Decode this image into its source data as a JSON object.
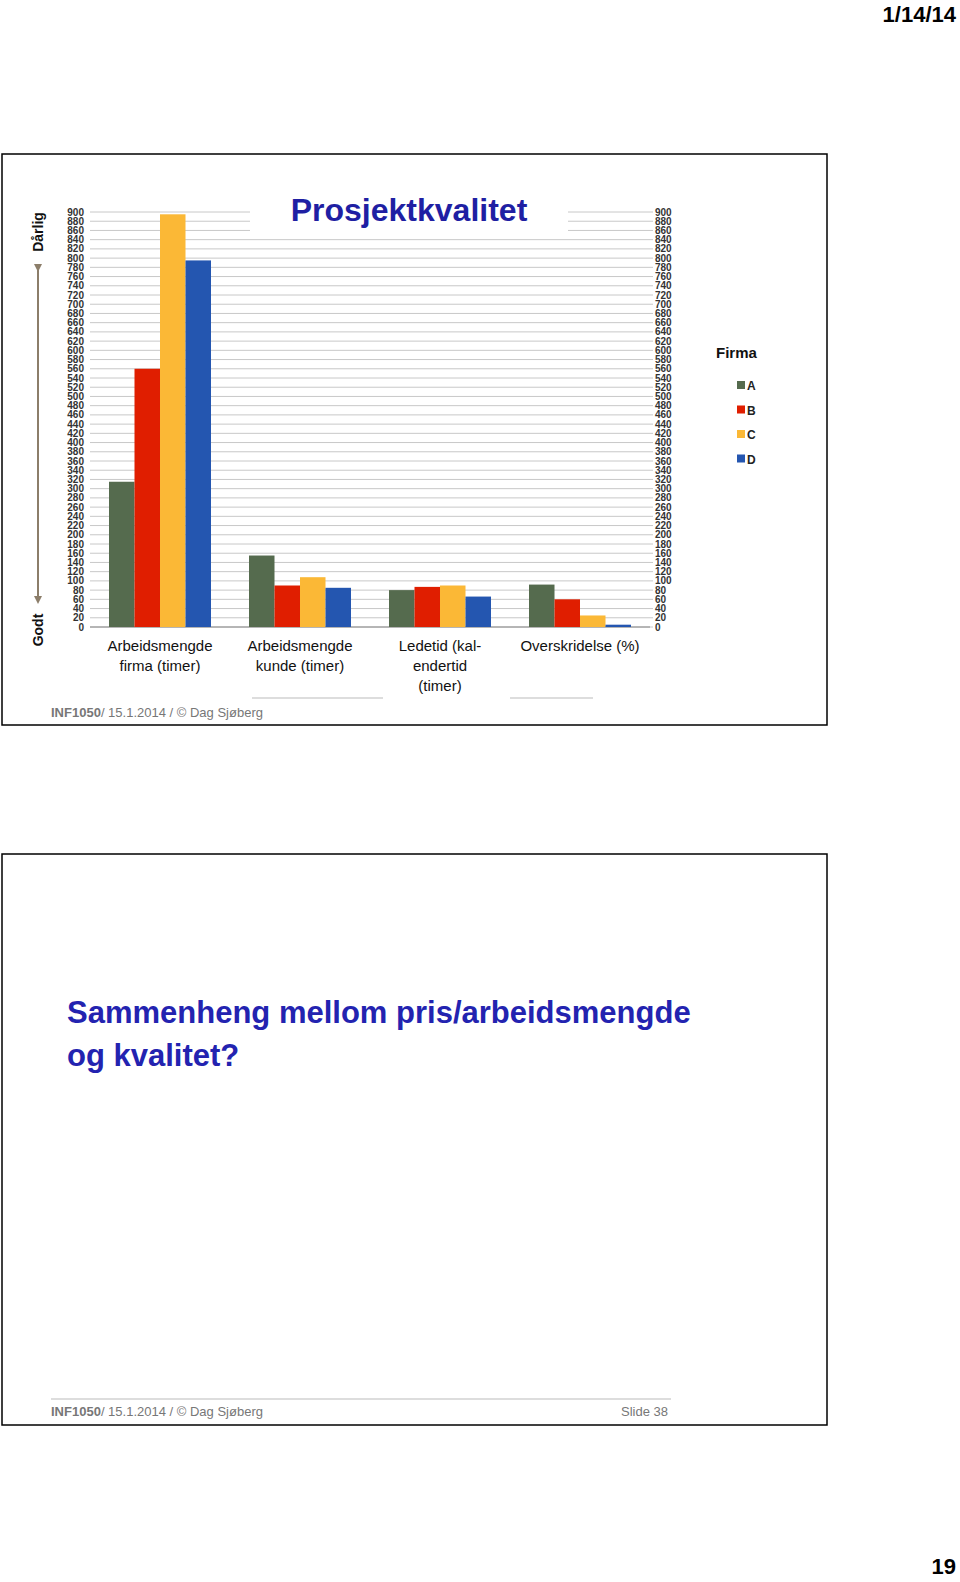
{
  "chart_data": {
    "type": "bar",
    "title": "Prosjektkvalitet",
    "categories": [
      "Arbeidsmengde\nfirma (timer)",
      "Arbeidsmengde\nkunde (timer)",
      "Ledetid (kal-\nendertid\n(timer)",
      "Overskridelse (%)"
    ],
    "series": [
      {
        "name": "A",
        "color": "#556b4e",
        "values": [
          315,
          155,
          80,
          92
        ]
      },
      {
        "name": "B",
        "color": "#e01e00",
        "values": [
          560,
          90,
          87,
          60
        ]
      },
      {
        "name": "C",
        "color": "#fbb836",
        "values": [
          895,
          108,
          90,
          25
        ]
      },
      {
        "name": "D",
        "color": "#2456b0",
        "values": [
          795,
          85,
          66,
          5
        ]
      }
    ],
    "ylim": [
      0,
      900
    ],
    "yticks": [
      0,
      20,
      40,
      60,
      80,
      100,
      120,
      140,
      160,
      180,
      200,
      220,
      240,
      260,
      280,
      300,
      320,
      340,
      360,
      380,
      400,
      420,
      440,
      460,
      480,
      500,
      520,
      540,
      560,
      580,
      600,
      620,
      640,
      660,
      680,
      700,
      720,
      740,
      760,
      780,
      800,
      820,
      840,
      860,
      880,
      900
    ],
    "y2lim": [
      0,
      900
    ],
    "y2ticks": [
      0,
      20,
      40,
      60,
      80,
      100,
      120,
      140,
      160,
      180,
      200,
      220,
      240,
      260,
      280,
      300,
      320,
      340,
      360,
      380,
      400,
      420,
      440,
      460,
      480,
      500,
      520,
      540,
      560,
      580,
      600,
      620,
      640,
      660,
      680,
      700,
      720,
      740,
      760,
      780,
      800,
      820,
      840,
      860,
      880,
      900
    ],
    "grid": true,
    "legend": "right",
    "legend_title": "Firma",
    "annotations": [
      "Dårlig",
      "Godt"
    ]
  },
  "page": {
    "date": "1/14/14",
    "page_number": 19
  },
  "slides": [
    {
      "course": "INF1050",
      "footer": "/ 15.1.2014 / © Dag Sjøberg"
    },
    {
      "heading": [
        "Sammenheng mellom pris/arbeidsmengde",
        "og kvalitet?"
      ],
      "course": "INF1050",
      "footer": "/ 15.1.2014 / © Dag Sjøberg",
      "slide": "Slide 38"
    }
  ]
}
